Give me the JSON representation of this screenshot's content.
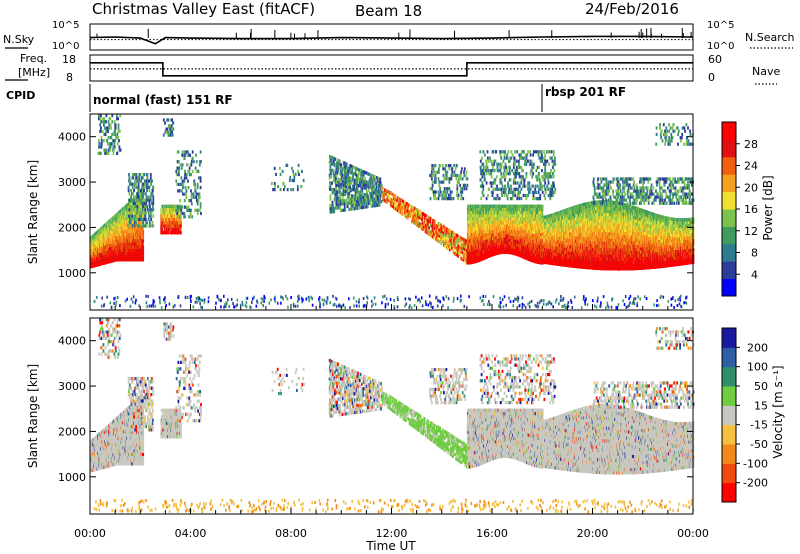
{
  "header": {
    "title": "Christmas Valley East (fitACF)",
    "beam": "Beam 18",
    "date": "24/Feb/2016"
  },
  "strip_panels": {
    "nsky_label": "N.Sky",
    "nsearch_label": "N.Search",
    "freq_label_line1": "Freq.",
    "freq_label_line2": "[MHz]",
    "nave_label": "Nave",
    "cpid_label": "CPID",
    "noise_ticks_left": [
      "10^5",
      "10^0"
    ],
    "noise_ticks_right": [
      "10^5",
      "10^0"
    ],
    "freq_ticks_left": [
      "18",
      "8"
    ],
    "freq_ticks_right": [
      "60",
      "0"
    ],
    "cpid_entries": [
      {
        "time_hours": 0.0,
        "label": "normal (fast) 151 RF"
      },
      {
        "time_hours": 18.0,
        "label": "rbsp 201 RF"
      }
    ]
  },
  "chart_data": [
    {
      "type": "line",
      "panel": "noise",
      "series": [
        {
          "name": "N.Sky",
          "x_hours": [
            0,
            1,
            2,
            2.6,
            3,
            4,
            6,
            8,
            10,
            12,
            14,
            16,
            18,
            20,
            22,
            24
          ],
          "y_log10": [
            2.4,
            2.5,
            2.3,
            1.2,
            2.4,
            2.3,
            2.2,
            2.2,
            2.4,
            2.3,
            2.2,
            2.3,
            2.5,
            2.6,
            2.6,
            2.5
          ]
        },
        {
          "name": "N.Search",
          "x_hours": [
            0,
            24
          ],
          "y_log10": [
            2.0,
            2.0
          ]
        }
      ],
      "ylim_log10": [
        0,
        5
      ]
    },
    {
      "type": "line",
      "panel": "frequency",
      "series": [
        {
          "name": "Freq.",
          "x_hours": [
            0,
            2.9,
            2.9,
            15,
            15,
            24
          ],
          "values": [
            15,
            15,
            10,
            10,
            15,
            15
          ]
        },
        {
          "name": "Nave",
          "x_hours": [
            0,
            24
          ],
          "values": [
            28,
            28
          ]
        }
      ],
      "ylim_left": [
        8,
        18
      ],
      "ylim_right": [
        0,
        60
      ]
    },
    {
      "type": "heatmap",
      "panel": "power",
      "ylabel": "Slant Range [km]",
      "yticks": [
        "4000",
        "3000",
        "2000",
        "1000"
      ],
      "ylim": [
        180,
        4500
      ],
      "colorbar_label": "Power [dB]",
      "colorbar_ticks": [
        "4",
        "8",
        "12",
        "16",
        "20",
        "24",
        "28"
      ],
      "colorbar_range": [
        0,
        32
      ],
      "colorbar_colors": [
        "#0000ff",
        "#2c3c9c",
        "#2e7b90",
        "#3f9b5e",
        "#7cc24c",
        "#f0e030",
        "#f5a020",
        "#f06010",
        "#e01010",
        "#ff0000"
      ]
    },
    {
      "type": "heatmap",
      "panel": "velocity",
      "ylabel": "Slant Range [km]",
      "yticks": [
        "4000",
        "3000",
        "2000",
        "1000"
      ],
      "ylim": [
        180,
        4500
      ],
      "xlabel": "Time UT",
      "xticks": [
        "00:00",
        "04:00",
        "08:00",
        "12:00",
        "16:00",
        "20:00",
        "00:00"
      ],
      "xlim_hours": [
        0,
        24
      ],
      "colorbar_label": "Velocity [m s⁻¹]",
      "colorbar_ticks": [
        "200",
        "100",
        "50",
        "15",
        "-15",
        "-50",
        "-100",
        "-200"
      ],
      "colorbar_colors": [
        "#1a1aa0",
        "#2f5da6",
        "#2f8f6b",
        "#6fcd3f",
        "#c8c8c0",
        "#f5c040",
        "#f28a1a",
        "#f04a10",
        "#ff0000"
      ]
    }
  ]
}
